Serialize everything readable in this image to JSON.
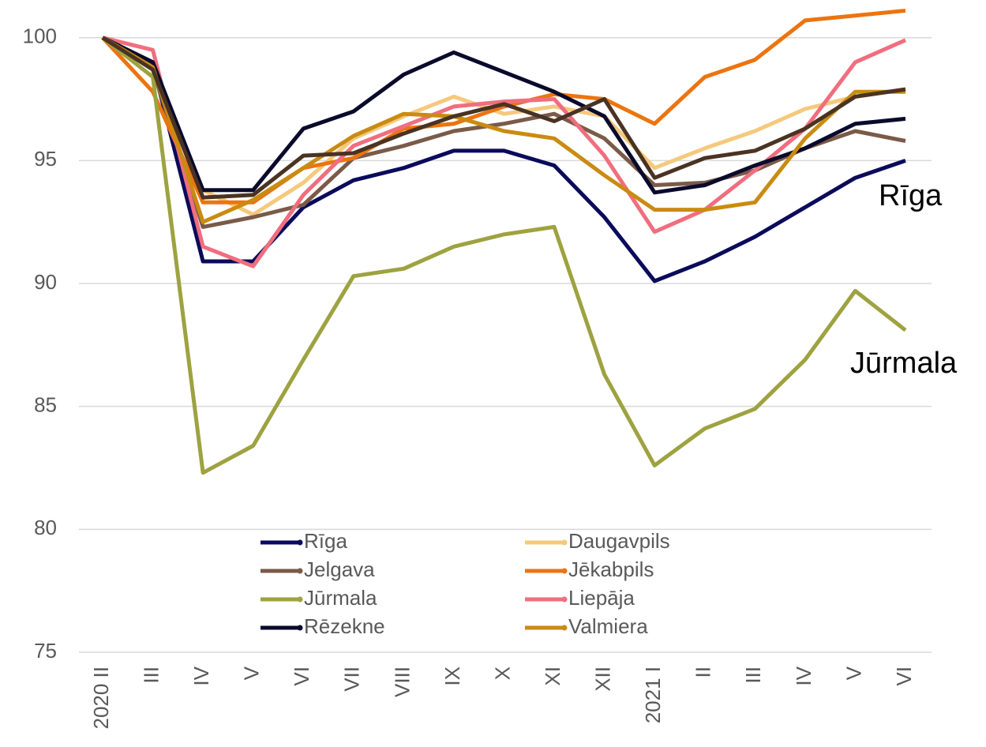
{
  "chart_data": {
    "type": "line",
    "categories": [
      "2020 II",
      "III",
      "IV",
      "V",
      "VI",
      "VII",
      "VIII",
      "IX",
      "X",
      "XI",
      "XII",
      "2021 I",
      "II",
      "III",
      "IV",
      "V",
      "VI"
    ],
    "series": [
      {
        "name": "Rīga",
        "color": "#0b0b5c",
        "values": [
          100,
          98.9,
          90.9,
          90.9,
          93.1,
          94.2,
          94.7,
          95.4,
          95.4,
          94.8,
          92.7,
          90.1,
          90.9,
          91.9,
          93.1,
          94.3,
          95.0
        ]
      },
      {
        "name": "Daugavpils",
        "color": "#f5c97c",
        "values": [
          100,
          98.8,
          93.8,
          92.8,
          94.1,
          95.9,
          96.8,
          97.6,
          96.9,
          97.2,
          96.8,
          94.7,
          95.5,
          96.2,
          97.1,
          97.6,
          97.9
        ]
      },
      {
        "name": "Jelgava",
        "color": "#7a5a48",
        "values": [
          100,
          98.7,
          92.3,
          92.7,
          93.2,
          95.1,
          95.6,
          96.2,
          96.5,
          96.9,
          95.9,
          94.0,
          94.1,
          94.6,
          95.5,
          96.2,
          95.8
        ]
      },
      {
        "name": "Jēkabpils",
        "color": "#ec7410",
        "values": [
          100,
          97.8,
          93.3,
          93.3,
          94.7,
          95.1,
          96.3,
          96.5,
          97.2,
          97.7,
          97.5,
          96.5,
          98.4,
          99.1,
          100.7,
          100.9,
          101.1
        ]
      },
      {
        "name": "Jūrmala",
        "color": "#9ea240",
        "values": [
          100,
          98.4,
          82.3,
          83.4,
          86.9,
          90.3,
          90.6,
          91.5,
          92.0,
          92.3,
          86.3,
          82.6,
          84.1,
          84.9,
          86.9,
          89.7,
          88.1
        ]
      },
      {
        "name": "Liepāja",
        "color": "#f06e7e",
        "values": [
          100,
          99.5,
          91.5,
          90.7,
          93.6,
          95.6,
          96.4,
          97.2,
          97.4,
          97.5,
          95.2,
          92.1,
          93.0,
          94.6,
          96.3,
          99.0,
          99.9
        ]
      },
      {
        "name": "Rēzekne",
        "color": "#0a0a2c",
        "values": [
          100,
          99.0,
          93.8,
          93.8,
          96.3,
          97.0,
          98.5,
          99.4,
          98.6,
          97.8,
          96.8,
          93.7,
          94.0,
          94.8,
          95.5,
          96.5,
          96.7
        ]
      },
      {
        "name": "Valmiera",
        "color": "#c98b12",
        "values": [
          100,
          98.8,
          92.5,
          93.4,
          94.7,
          96.0,
          96.9,
          96.8,
          96.2,
          95.9,
          94.4,
          93.0,
          93.0,
          93.3,
          95.9,
          97.8,
          97.8
        ]
      },
      {
        "color": "#4a3322",
        "values": [
          100,
          98.7,
          93.5,
          93.6,
          95.2,
          95.3,
          96.1,
          96.8,
          97.3,
          96.6,
          97.5,
          94.3,
          95.1,
          95.4,
          96.3,
          97.6,
          97.9
        ]
      }
    ],
    "annotations": [
      "Rīga",
      "Jūrmala"
    ],
    "ylim": [
      75,
      101.5
    ],
    "yticks": [
      75,
      80,
      85,
      90,
      95,
      100
    ],
    "grid": true
  }
}
